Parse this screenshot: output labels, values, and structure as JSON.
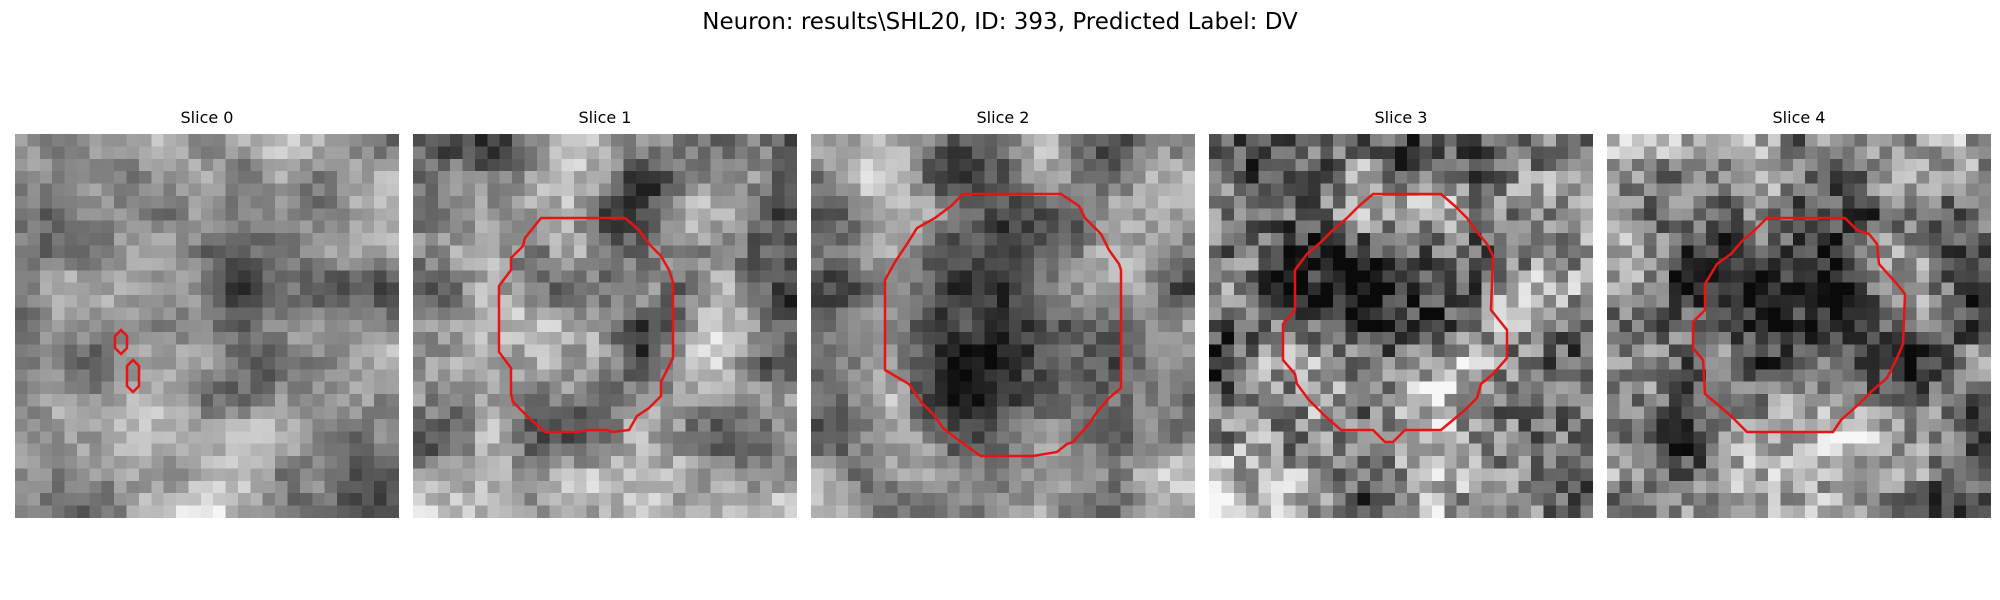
{
  "figure": {
    "title": "Neuron: results\\SHL20, ID: 393, Predicted Label: DV",
    "contour_color": "#e81414"
  },
  "slices": [
    {
      "title": "Slice 0"
    },
    {
      "title": "Slice 1"
    },
    {
      "title": "Slice 2"
    },
    {
      "title": "Slice 3"
    },
    {
      "title": "Slice 4"
    }
  ]
}
